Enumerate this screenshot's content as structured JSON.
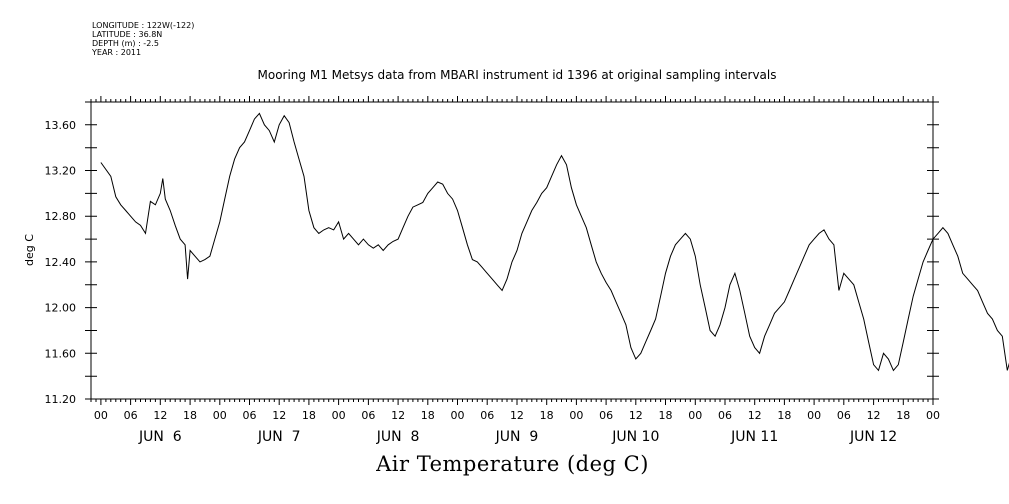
{
  "meta": {
    "longitude": "LONGITUDE : 122W(-122)",
    "latitude": "LATITUDE : 36.8N",
    "depth": "DEPTH (m) : -2.5",
    "year": "YEAR : 2011"
  },
  "chart_data": {
    "type": "line",
    "title": "Mooring M1 Metsys data from MBARI instrument id 1396 at original sampling intervals",
    "xlabel": "Air Temperature (deg C)",
    "ylabel": "deg C",
    "ylim": [
      11.2,
      13.8
    ],
    "y_ticks": [
      "11.20",
      "11.60",
      "12.00",
      "12.40",
      "12.80",
      "13.20",
      "13.60"
    ],
    "x_range_hours": [
      -2,
      168
    ],
    "hour_tick_labels": [
      "00",
      "06",
      "12",
      "18"
    ],
    "day_labels": [
      "JUN  6",
      "JUN  7",
      "JUN  8",
      "JUN  9",
      "JUN 10",
      "JUN 11",
      "JUN 12"
    ],
    "grid": false,
    "series": [
      {
        "points": [
          [
            0,
            13.27
          ],
          [
            2,
            13.15
          ],
          [
            3,
            12.97
          ],
          [
            4,
            12.9
          ],
          [
            5,
            12.85
          ],
          [
            6,
            12.8
          ],
          [
            7,
            12.75
          ],
          [
            8,
            12.72
          ],
          [
            9,
            12.65
          ],
          [
            10,
            12.93
          ],
          [
            11,
            12.9
          ],
          [
            12,
            13.0
          ],
          [
            12.5,
            13.13
          ],
          [
            13,
            12.95
          ],
          [
            14,
            12.85
          ],
          [
            15,
            12.72
          ],
          [
            16,
            12.6
          ],
          [
            17,
            12.55
          ],
          [
            17.5,
            12.25
          ],
          [
            18,
            12.5
          ],
          [
            19,
            12.45
          ],
          [
            20,
            12.4
          ],
          [
            21,
            12.42
          ],
          [
            22,
            12.45
          ],
          [
            23,
            12.6
          ],
          [
            24,
            12.75
          ],
          [
            25,
            12.95
          ],
          [
            26,
            13.15
          ],
          [
            27,
            13.3
          ],
          [
            28,
            13.4
          ],
          [
            29,
            13.45
          ],
          [
            30,
            13.55
          ],
          [
            31,
            13.65
          ],
          [
            32,
            13.7
          ],
          [
            33,
            13.6
          ],
          [
            34,
            13.55
          ],
          [
            35,
            13.45
          ],
          [
            36,
            13.6
          ],
          [
            37,
            13.68
          ],
          [
            38,
            13.62
          ],
          [
            39,
            13.45
          ],
          [
            40,
            13.3
          ],
          [
            41,
            13.15
          ],
          [
            42,
            12.85
          ],
          [
            43,
            12.7
          ],
          [
            44,
            12.65
          ],
          [
            45,
            12.68
          ],
          [
            46,
            12.7
          ],
          [
            47,
            12.68
          ],
          [
            48,
            12.75
          ],
          [
            49,
            12.6
          ],
          [
            50,
            12.65
          ],
          [
            51,
            12.6
          ],
          [
            52,
            12.55
          ],
          [
            53,
            12.6
          ],
          [
            54,
            12.55
          ],
          [
            55,
            12.52
          ],
          [
            56,
            12.55
          ],
          [
            57,
            12.5
          ],
          [
            58,
            12.55
          ],
          [
            59,
            12.58
          ],
          [
            60,
            12.6
          ],
          [
            61,
            12.7
          ],
          [
            62,
            12.8
          ],
          [
            63,
            12.88
          ],
          [
            64,
            12.9
          ],
          [
            65,
            12.92
          ],
          [
            66,
            13.0
          ],
          [
            67,
            13.05
          ],
          [
            68,
            13.1
          ],
          [
            69,
            13.08
          ],
          [
            70,
            13.0
          ],
          [
            71,
            12.95
          ],
          [
            72,
            12.85
          ],
          [
            73,
            12.7
          ],
          [
            74,
            12.55
          ],
          [
            75,
            12.42
          ],
          [
            76,
            12.4
          ],
          [
            77,
            12.35
          ],
          [
            78,
            12.3
          ],
          [
            79,
            12.25
          ],
          [
            80,
            12.2
          ],
          [
            81,
            12.15
          ],
          [
            82,
            12.25
          ],
          [
            83,
            12.4
          ],
          [
            84,
            12.5
          ],
          [
            85,
            12.65
          ],
          [
            86,
            12.75
          ],
          [
            87,
            12.85
          ],
          [
            88,
            12.92
          ],
          [
            89,
            13.0
          ],
          [
            90,
            13.05
          ],
          [
            91,
            13.15
          ],
          [
            92,
            13.25
          ],
          [
            93,
            13.33
          ],
          [
            94,
            13.25
          ],
          [
            95,
            13.05
          ],
          [
            96,
            12.9
          ],
          [
            97,
            12.8
          ],
          [
            98,
            12.7
          ],
          [
            99,
            12.55
          ],
          [
            100,
            12.4
          ],
          [
            101,
            12.3
          ],
          [
            102,
            12.22
          ],
          [
            103,
            12.15
          ],
          [
            104,
            12.05
          ],
          [
            105,
            11.95
          ],
          [
            106,
            11.85
          ],
          [
            107,
            11.65
          ],
          [
            108,
            11.55
          ],
          [
            109,
            11.6
          ],
          [
            110,
            11.7
          ],
          [
            111,
            11.8
          ],
          [
            112,
            11.9
          ],
          [
            113,
            12.1
          ],
          [
            114,
            12.3
          ],
          [
            115,
            12.45
          ],
          [
            116,
            12.55
          ],
          [
            117,
            12.6
          ],
          [
            118,
            12.65
          ],
          [
            119,
            12.6
          ],
          [
            120,
            12.45
          ],
          [
            121,
            12.2
          ],
          [
            122,
            12.0
          ],
          [
            123,
            11.8
          ],
          [
            124,
            11.75
          ],
          [
            125,
            11.85
          ],
          [
            126,
            12.0
          ],
          [
            127,
            12.2
          ],
          [
            128,
            12.3
          ],
          [
            129,
            12.15
          ],
          [
            130,
            11.95
          ],
          [
            131,
            11.75
          ],
          [
            132,
            11.65
          ],
          [
            133,
            11.6
          ],
          [
            134,
            11.75
          ],
          [
            135,
            11.85
          ],
          [
            136,
            11.95
          ],
          [
            137,
            12.0
          ],
          [
            138,
            12.05
          ],
          [
            139,
            12.15
          ],
          [
            140,
            12.25
          ],
          [
            141,
            12.35
          ],
          [
            142,
            12.45
          ],
          [
            143,
            12.55
          ],
          [
            144,
            12.6
          ],
          [
            145,
            12.65
          ],
          [
            146,
            12.68
          ],
          [
            147,
            12.6
          ],
          [
            148,
            12.55
          ],
          [
            149,
            12.15
          ],
          [
            150,
            12.3
          ],
          [
            151,
            12.25
          ],
          [
            152,
            12.2
          ],
          [
            153,
            12.05
          ],
          [
            154,
            11.9
          ],
          [
            155,
            11.7
          ],
          [
            156,
            11.5
          ],
          [
            157,
            11.45
          ],
          [
            158,
            11.6
          ],
          [
            159,
            11.55
          ],
          [
            160,
            11.45
          ],
          [
            161,
            11.5
          ],
          [
            162,
            11.7
          ],
          [
            163,
            11.9
          ],
          [
            164,
            12.1
          ],
          [
            165,
            12.25
          ],
          [
            166,
            12.4
          ],
          [
            167,
            12.5
          ],
          [
            168,
            12.6
          ],
          [
            169,
            12.65
          ],
          [
            170,
            12.7
          ],
          [
            171,
            12.65
          ],
          [
            172,
            12.55
          ],
          [
            173,
            12.45
          ],
          [
            174,
            12.3
          ],
          [
            175,
            12.25
          ],
          [
            176,
            12.2
          ],
          [
            177,
            12.15
          ],
          [
            178,
            12.05
          ],
          [
            179,
            11.95
          ],
          [
            180,
            11.9
          ],
          [
            181,
            11.8
          ],
          [
            182,
            11.75
          ],
          [
            183,
            11.45
          ],
          [
            184,
            11.6
          ],
          [
            185,
            11.8
          ],
          [
            186,
            12.0
          ],
          [
            187,
            12.2
          ],
          [
            188,
            12.32
          ],
          [
            189,
            12.1
          ],
          [
            190,
            11.9
          ],
          [
            191,
            11.75
          ],
          [
            192,
            11.6
          ],
          [
            192.5,
            11.9
          ]
        ]
      }
    ]
  }
}
